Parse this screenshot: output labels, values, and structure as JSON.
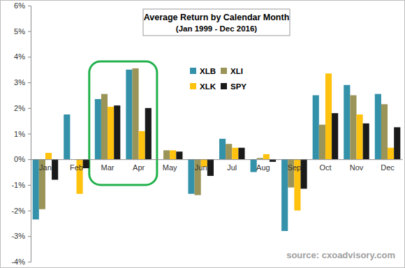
{
  "chart_data": {
    "type": "bar",
    "title": "Average Return by Calendar Month",
    "subtitle": "(Jan 1999 - Dec 2016)",
    "annotations": [
      "source: cxoadvisory.com"
    ],
    "categories": [
      "Jan",
      "Feb",
      "Mar",
      "Apr",
      "May",
      "Jun",
      "Jul",
      "Aug",
      "Sep",
      "Oct",
      "Nov",
      "Dec"
    ],
    "series": [
      {
        "name": "XLB",
        "color": "#3391a9",
        "values": [
          -2.35,
          1.75,
          2.35,
          3.5,
          0.0,
          -1.35,
          0.8,
          -0.5,
          -2.8,
          2.5,
          2.9,
          2.55
        ]
      },
      {
        "name": "XLI",
        "color": "#9b9458",
        "values": [
          -1.95,
          0.0,
          2.55,
          3.55,
          0.35,
          -1.4,
          0.6,
          0.05,
          -1.1,
          1.35,
          2.5,
          2.15
        ]
      },
      {
        "name": "XLK",
        "color": "#ffc20e",
        "values": [
          0.25,
          -1.35,
          2.05,
          1.1,
          0.35,
          -0.3,
          0.45,
          0.2,
          -2.0,
          3.35,
          1.75,
          0.45
        ]
      },
      {
        "name": "SPY",
        "color": "#1a1a1a",
        "values": [
          -0.8,
          -0.35,
          2.1,
          2.0,
          0.3,
          -0.65,
          0.45,
          -0.1,
          -1.15,
          1.8,
          1.4,
          1.25
        ]
      }
    ],
    "ylim": [
      -4,
      6
    ],
    "yticks": [
      {
        "value": -4,
        "label": "-4%"
      },
      {
        "value": -3,
        "label": "-3%"
      },
      {
        "value": -2,
        "label": "-2%"
      },
      {
        "value": -1,
        "label": "-1%"
      },
      {
        "value": 0,
        "label": "0%"
      },
      {
        "value": 1,
        "label": "1%"
      },
      {
        "value": 2,
        "label": "2%"
      },
      {
        "value": 3,
        "label": "3%"
      },
      {
        "value": 4,
        "label": "4%"
      },
      {
        "value": 5,
        "label": "5%"
      },
      {
        "value": 6,
        "label": "6%"
      }
    ],
    "grid": false,
    "legend": "top-center"
  }
}
